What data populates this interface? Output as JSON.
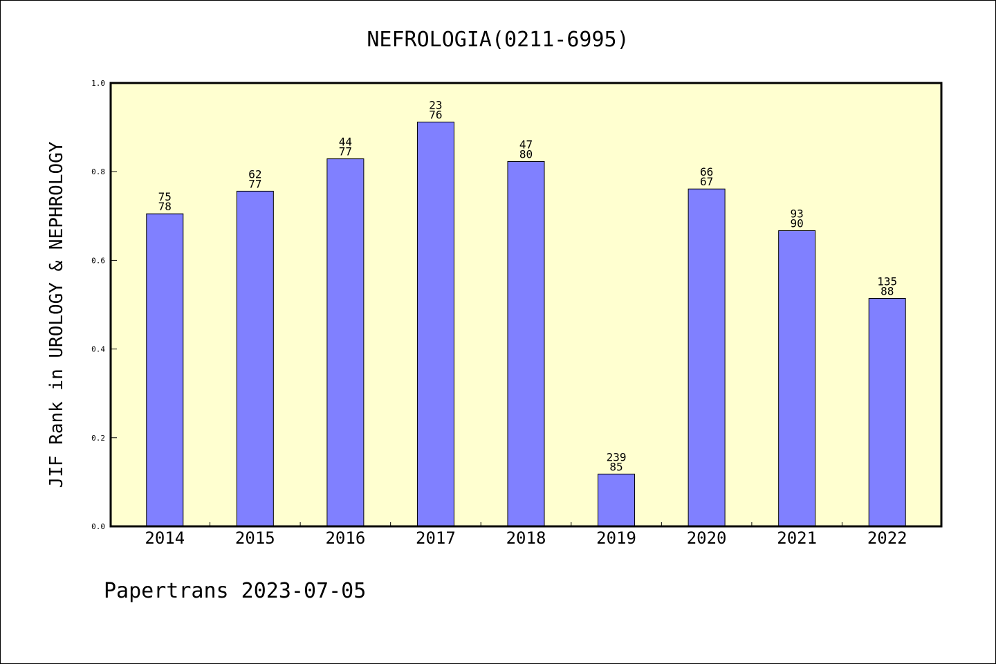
{
  "chart_data": {
    "type": "bar",
    "title": "NEFROLOGIA(0211-6995)",
    "ylabel": "JIF Rank in UROLOGY & NEPHROLOGY",
    "xlabel": "",
    "ylim": [
      0,
      1.0
    ],
    "yticks": [
      "0.0",
      "0.2",
      "0.4",
      "0.6",
      "0.8",
      "1.0"
    ],
    "categories": [
      "2014",
      "2015",
      "2016",
      "2017",
      "2018",
      "2019",
      "2020",
      "2021",
      "2022"
    ],
    "values": [
      0.705,
      0.756,
      0.829,
      0.912,
      0.823,
      0.118,
      0.761,
      0.667,
      0.514
    ],
    "labels_top": [
      "75",
      "62",
      "44",
      "23",
      "47",
      "239",
      "66",
      "93",
      "135"
    ],
    "labels_bottom": [
      "78",
      "77",
      "77",
      "76",
      "80",
      "85",
      "67",
      "90",
      "88"
    ],
    "bar_color": "#8080ff",
    "plot_background": "#ffffd0",
    "grid": false
  },
  "footer": {
    "watermark": "Papertrans 2023-07-05"
  }
}
